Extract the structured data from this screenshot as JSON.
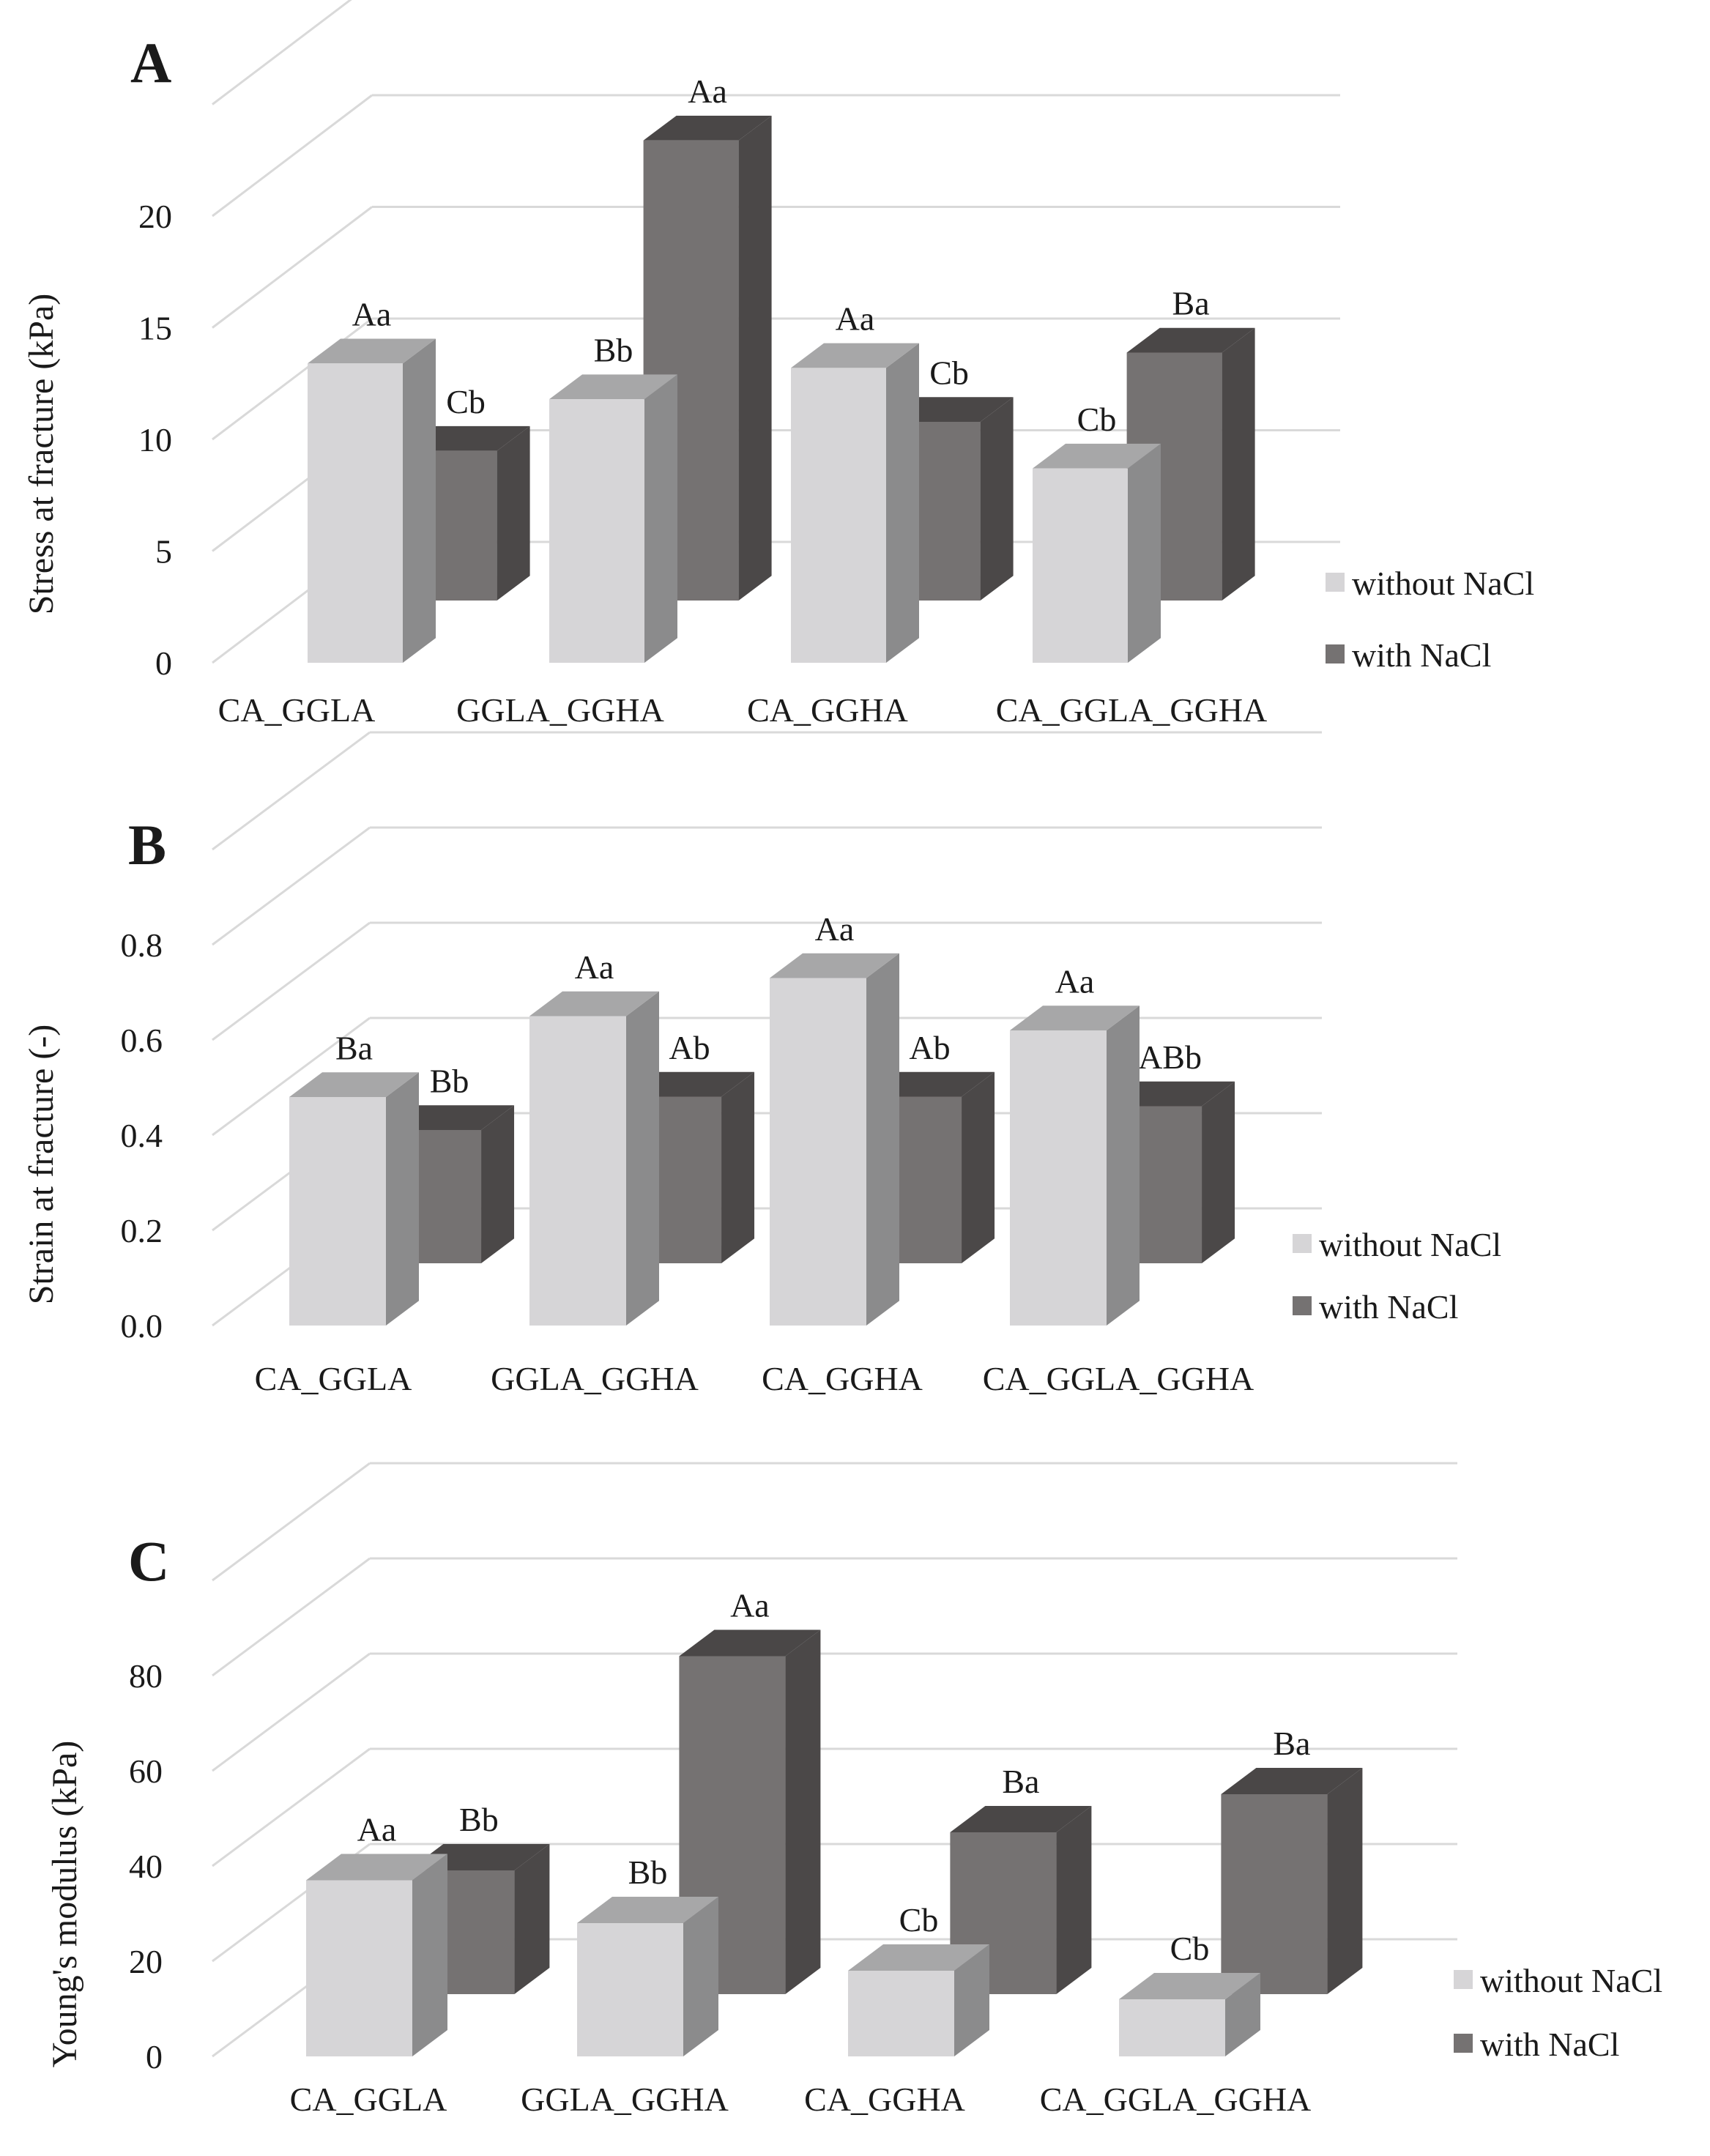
{
  "colors": {
    "without_front": "#d6d5d7",
    "without_top": "#a7a7a8",
    "without_side": "#8b8b8c",
    "with_front": "#757272",
    "with_top": "#4a4747",
    "with_side": "#4b4848",
    "grid": "#d9d9d9"
  },
  "legend": {
    "without": "without NaCl",
    "with": "with NaCl"
  },
  "chart_data": [
    {
      "panel": "A",
      "type": "bar",
      "ylabel": "Stress at fracture (kPa)",
      "ylim": [
        0,
        25
      ],
      "yticks": [
        "0",
        "5",
        "10",
        "15",
        "20"
      ],
      "categories": [
        "CA_GGLA",
        "GGLA_GGHA",
        "CA_GGHA",
        "CA_GGLA_GGHA"
      ],
      "series": [
        {
          "name": "without NaCl",
          "values": [
            13.4,
            11.8,
            13.2,
            8.7
          ],
          "labels": [
            "Aa",
            "Bb",
            "Aa",
            "Cb"
          ]
        },
        {
          "name": "with NaCl",
          "values": [
            6.7,
            20.6,
            8.0,
            11.1
          ],
          "labels": [
            "Cb",
            "Aa",
            "Cb",
            "Ba"
          ]
        }
      ]
    },
    {
      "panel": "B",
      "type": "bar",
      "ylabel": "Strain at fracture (-)",
      "ylim": [
        0,
        1.0
      ],
      "yticks": [
        "0.0",
        "0.2",
        "0.4",
        "0.6",
        "0.8"
      ],
      "categories": [
        "CA_GGLA",
        "GGLA_GGHA",
        "CA_GGHA",
        "CA_GGLA_GGHA"
      ],
      "series": [
        {
          "name": "without NaCl",
          "values": [
            0.48,
            0.65,
            0.73,
            0.62
          ],
          "labels": [
            "Ba",
            "Aa",
            "Aa",
            "Aa"
          ]
        },
        {
          "name": "with NaCl",
          "values": [
            0.28,
            0.35,
            0.35,
            0.33
          ],
          "labels": [
            "Bb",
            "Ab",
            "Ab",
            "ABb"
          ]
        }
      ]
    },
    {
      "panel": "C",
      "type": "bar",
      "ylabel": "Young's modulus (kPa)",
      "ylim": [
        0,
        100
      ],
      "yticks": [
        "0",
        "20",
        "40",
        "60",
        "80"
      ],
      "categories": [
        "CA_GGLA",
        "GGLA_GGHA",
        "CA_GGHA",
        "CA_GGLA_GGHA"
      ],
      "series": [
        {
          "name": "without NaCl",
          "values": [
            37,
            28,
            18,
            12
          ],
          "labels": [
            "Aa",
            "Bb",
            "Cb",
            "Cb"
          ]
        },
        {
          "name": "with NaCl",
          "values": [
            26,
            71,
            34,
            42
          ],
          "labels": [
            "Bb",
            "Aa",
            "Ba",
            "Ba"
          ]
        }
      ]
    }
  ]
}
